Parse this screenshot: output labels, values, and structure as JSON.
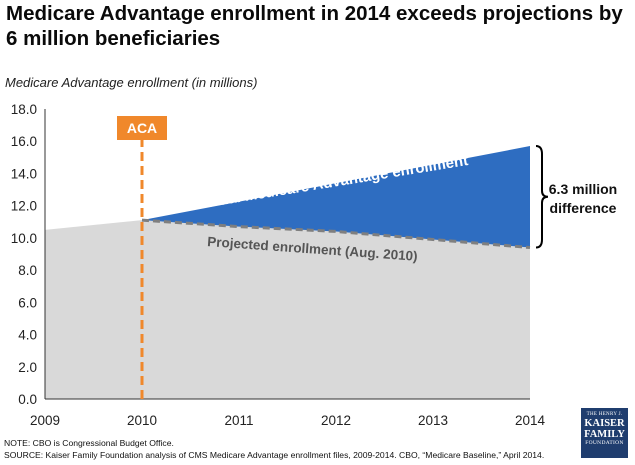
{
  "title": "Medicare Advantage enrollment in 2014 exceeds projections by 6 million beneficiaries",
  "note": "NOTE: CBO is Congressional Budget Office.",
  "source": "SOURCE:  Kaiser Family Foundation analysis of CMS Medicare Advantage enrollment files, 2009-2014. CBO, “Medicare Baseline,” April 2014.",
  "logo": {
    "line1": "THE HENRY J.",
    "line2": "KAISER",
    "line3": "FAMILY",
    "line4": "FOUNDATION"
  },
  "chart_data": {
    "type": "area",
    "ylabel": "Medicare Advantage enrollment (in millions)",
    "xlabel": "",
    "x_ticks": [
      "2009",
      "2010",
      "2011",
      "2012",
      "2013",
      "2014"
    ],
    "y_ticks": [
      "0.0",
      "2.0",
      "4.0",
      "6.0",
      "8.0",
      "10.0",
      "12.0",
      "14.0",
      "16.0",
      "18.0"
    ],
    "xlim": [
      2009,
      2014
    ],
    "ylim": [
      0,
      18
    ],
    "grid": false,
    "series": [
      {
        "name": "Projected enrollment (Aug. 2010)",
        "x": [
          2009,
          2010,
          2011,
          2012,
          2013,
          2014
        ],
        "y": [
          10.5,
          11.1,
          10.7,
          10.4,
          9.9,
          9.4
        ],
        "color": "#d9d9d9",
        "line_color": "#7f7f7f"
      },
      {
        "name": "Actual Medicare Advantage enrollment",
        "x": [
          2010,
          2014
        ],
        "y": [
          11.1,
          15.7
        ],
        "color": "#2e6dc1"
      }
    ],
    "annotations": {
      "aca_label": "ACA",
      "aca_x": 2010,
      "aca_color": "#f0882b",
      "difference_label_line1": "6.3 million",
      "difference_label_line2": "difference",
      "difference_x": 2014
    }
  }
}
